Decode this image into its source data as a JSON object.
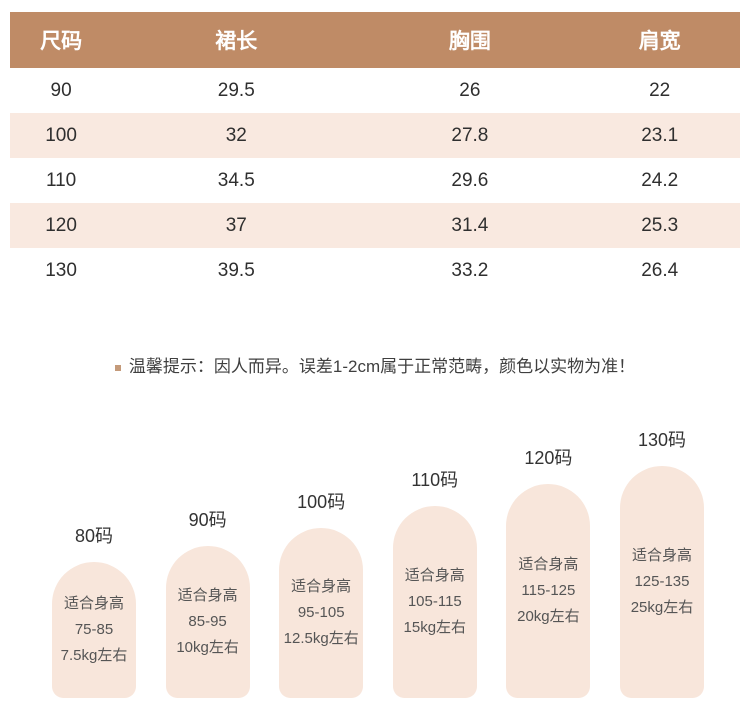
{
  "table": {
    "headers": [
      "尺码",
      "裙长",
      "胸围",
      "肩宽"
    ],
    "rows": [
      [
        "90",
        "29.5",
        "26",
        "22"
      ],
      [
        "100",
        "32",
        "27.8",
        "23.1"
      ],
      [
        "110",
        "34.5",
        "29.6",
        "24.2"
      ],
      [
        "120",
        "37",
        "31.4",
        "25.3"
      ],
      [
        "130",
        "39.5",
        "33.2",
        "26.4"
      ]
    ]
  },
  "note": {
    "text": "温馨提示：因人而异。误差1-2cm属于正常范畴，颜色以实物为准！"
  },
  "size_guide": [
    {
      "label": "80码",
      "fit": "适合身高",
      "range": "75-85",
      "weight": "7.5kg左右"
    },
    {
      "label": "90码",
      "fit": "适合身高",
      "range": "85-95",
      "weight": "10kg左右"
    },
    {
      "label": "100码",
      "fit": "适合身高",
      "range": "95-105",
      "weight": "12.5kg左右"
    },
    {
      "label": "110码",
      "fit": "适合身高",
      "range": "105-115",
      "weight": "15kg左右"
    },
    {
      "label": "120码",
      "fit": "适合身高",
      "range": "115-125",
      "weight": "20kg左右"
    },
    {
      "label": "130码",
      "fit": "适合身高",
      "range": "125-135",
      "weight": "25kg左右"
    }
  ],
  "colors": {
    "header_bg": "#bf8b66",
    "row_alt_bg": "#f9e9e0",
    "shape_bg": "#f8e6db",
    "bullet": "#c49a7a"
  }
}
